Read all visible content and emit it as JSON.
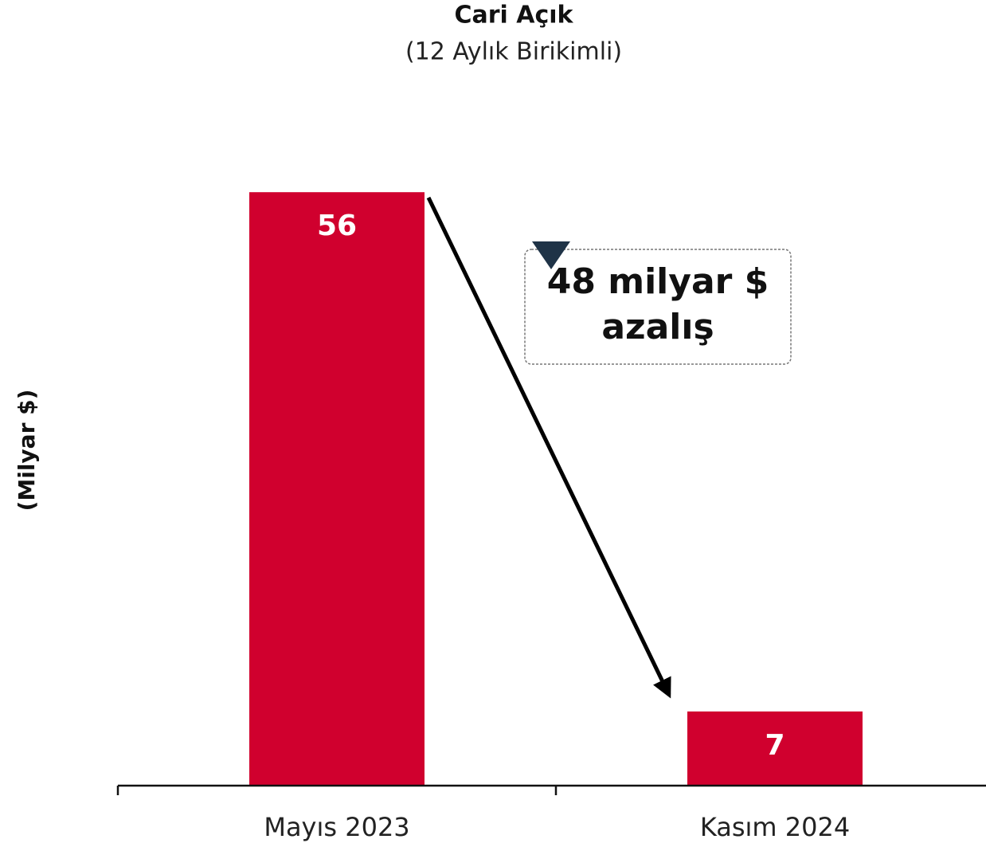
{
  "chart_data": {
    "type": "bar",
    "title": "Cari Açık",
    "subtitle": "(12 Aylık Birikimli)",
    "y_label": "(Milyar $)",
    "categories": [
      "Mayıs 2023",
      "Kasım 2024"
    ],
    "values": [
      56,
      7
    ],
    "color": "#d0002e",
    "ylim": [
      0,
      60
    ],
    "annotation": [
      "48 milyar $",
      "azalış"
    ]
  }
}
